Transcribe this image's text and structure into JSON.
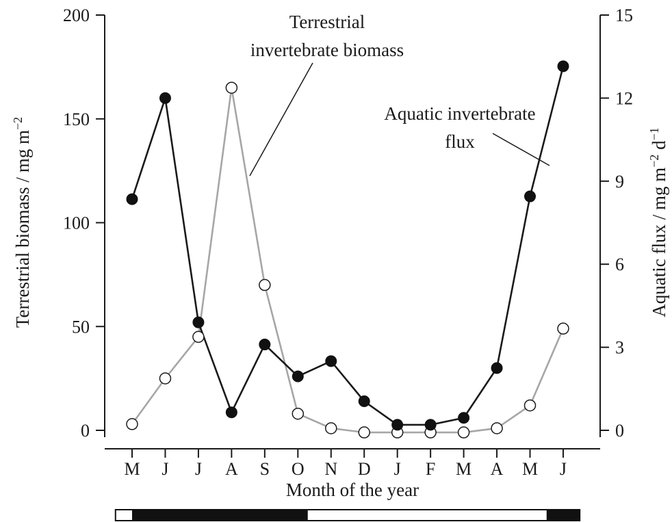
{
  "chart_data": {
    "type": "line",
    "categories": [
      "M",
      "J",
      "J",
      "A",
      "S",
      "O",
      "N",
      "D",
      "J",
      "F",
      "M",
      "A",
      "M",
      "J"
    ],
    "xlabel": "Month of the year",
    "y_left": {
      "label": "Terrestrial biomass / mg m",
      "label_sup": "−2",
      "ylim": [
        0,
        200
      ],
      "ticks": [
        "0",
        "50",
        "100",
        "150",
        "200"
      ]
    },
    "y_right": {
      "label": "Aquatic flux / mg m",
      "label_sup1": "−2",
      "label_mid": " d",
      "label_sup2": "−1",
      "ylim": [
        0,
        15
      ],
      "ticks": [
        "0",
        "3",
        "6",
        "9",
        "12",
        "15"
      ]
    },
    "series": [
      {
        "name": "Terrestrial invertebrate biomass",
        "axis": "left",
        "marker": "open-circle",
        "color": "#a6a6a6",
        "values": [
          3,
          25,
          45,
          165,
          70,
          8,
          1,
          -1,
          -1,
          -1,
          -1,
          1,
          12,
          49
        ]
      },
      {
        "name": "Aquatic invertebrate flux",
        "axis": "right",
        "marker": "filled-circle",
        "color": "#1a1a1a",
        "values": [
          8.35,
          12.0,
          3.9,
          0.65,
          3.1,
          1.95,
          2.5,
          1.05,
          0.2,
          0.2,
          0.45,
          2.25,
          8.45,
          13.15
        ]
      }
    ],
    "annotations": [
      {
        "lines": [
          "Terrestrial",
          "invertebrate biomass"
        ],
        "target_series": 0
      },
      {
        "lines": [
          "Aquatic invertebrate",
          "flux"
        ],
        "target_series": 1
      }
    ],
    "season_bar": {
      "segments": [
        {
          "start": -0.5,
          "end": 0.0,
          "fill": "white"
        },
        {
          "start": 0.0,
          "end": 5.3,
          "fill": "black"
        },
        {
          "start": 5.3,
          "end": 12.5,
          "fill": "white"
        },
        {
          "start": 12.5,
          "end": 13.5,
          "fill": "black"
        }
      ]
    }
  }
}
